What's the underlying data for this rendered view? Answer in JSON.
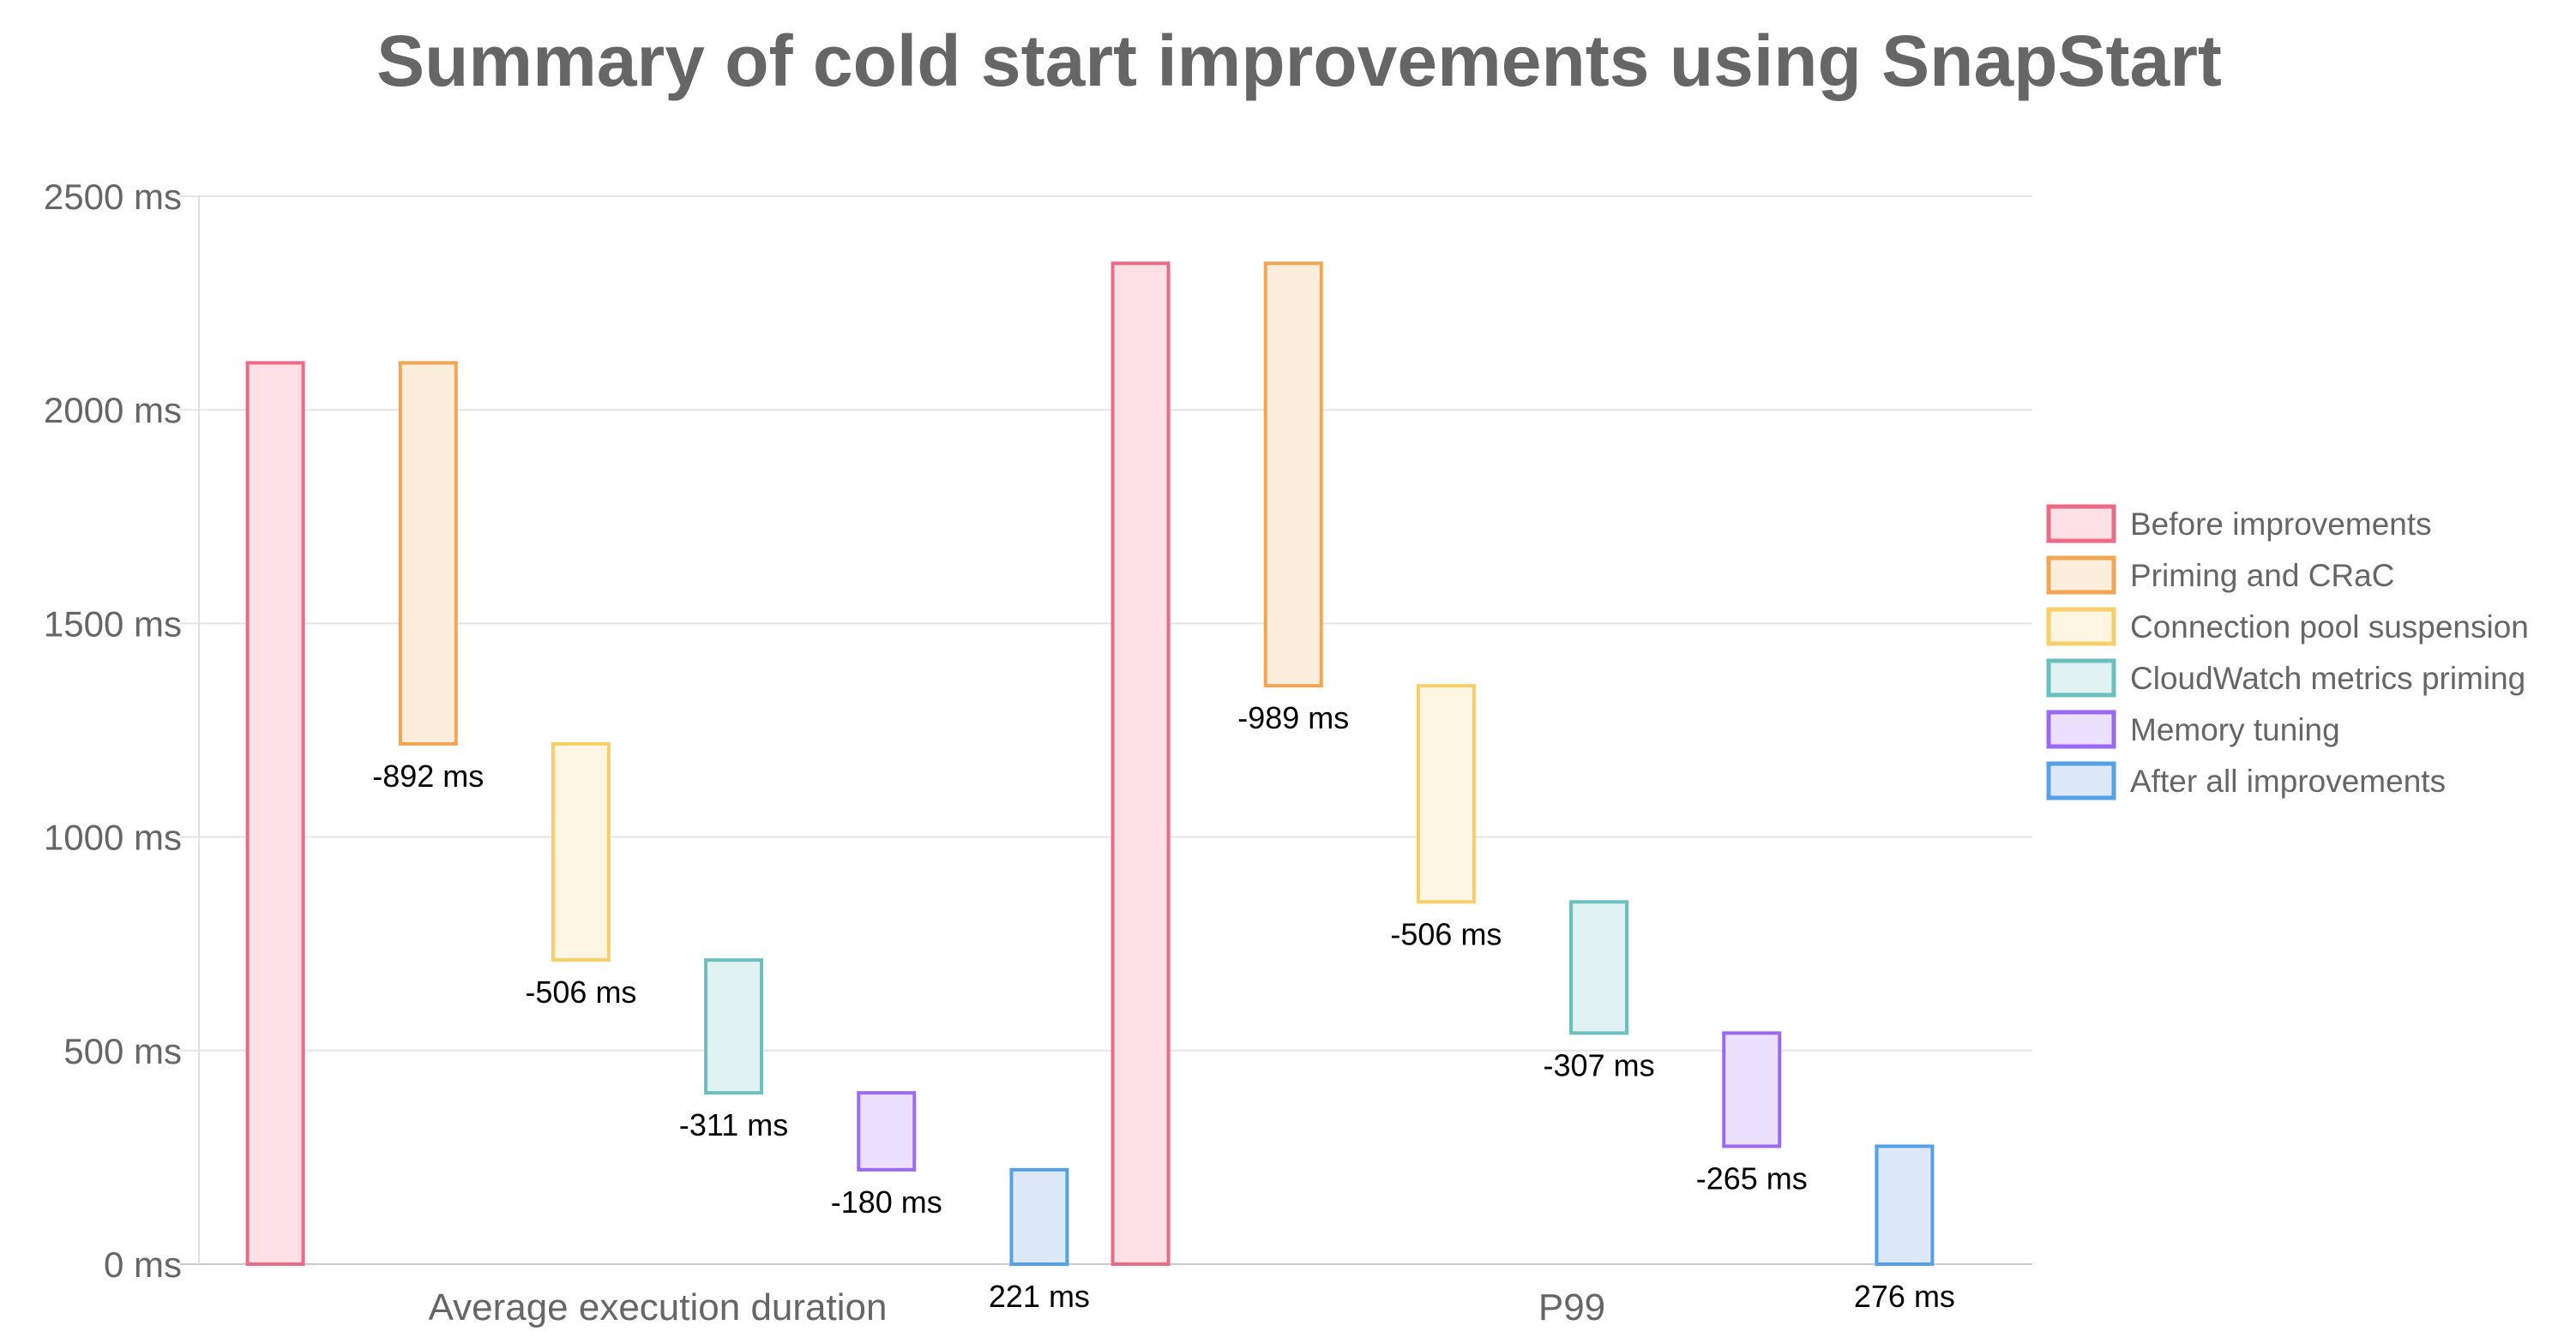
{
  "chart_data": {
    "type": "bar",
    "subtype": "waterfall",
    "title": "Summary of cold start improvements using SnapStart",
    "categories": [
      "Average execution duration",
      "P99"
    ],
    "ylim": [
      0,
      2500
    ],
    "yticks": [
      0,
      500,
      1000,
      1500,
      2000,
      2500
    ],
    "ytick_labels": [
      "0 ms",
      "500 ms",
      "1000 ms",
      "1500 ms",
      "2000 ms",
      "2500 ms"
    ],
    "grid": true,
    "legend_position": "right",
    "series": [
      {
        "name": "Before improvements",
        "color": "#ec6b84",
        "fill": "#fde1e6",
        "ranges": [
          [
            0,
            2110
          ],
          [
            0,
            2343
          ]
        ],
        "labels": [
          "",
          ""
        ]
      },
      {
        "name": "Priming and CRaC",
        "color": "#f2a553",
        "fill": "#fdeddd",
        "ranges": [
          [
            1218,
            2110
          ],
          [
            1354,
            2343
          ]
        ],
        "labels": [
          "-892 ms",
          "-989 ms"
        ]
      },
      {
        "name": "Connection pool suspension",
        "color": "#f7cf68",
        "fill": "#fef6e2",
        "ranges": [
          [
            712,
            1218
          ],
          [
            848,
            1354
          ]
        ],
        "labels": [
          "-506 ms",
          "-506 ms"
        ]
      },
      {
        "name": "CloudWatch metrics priming",
        "color": "#6cbfbf",
        "fill": "#e1f2f2",
        "ranges": [
          [
            401,
            712
          ],
          [
            541,
            848
          ]
        ],
        "labels": [
          "-311 ms",
          "-307 ms"
        ]
      },
      {
        "name": "Memory tuning",
        "color": "#9a6af5",
        "fill": "#ebe0fd",
        "ranges": [
          [
            221,
            401
          ],
          [
            276,
            541
          ]
        ],
        "labels": [
          "-180 ms",
          "-265 ms"
        ]
      },
      {
        "name": "After all improvements",
        "color": "#55a0e6",
        "fill": "#dde9f8",
        "ranges": [
          [
            0,
            221
          ],
          [
            0,
            276
          ]
        ],
        "labels": [
          "221 ms",
          "276 ms"
        ]
      }
    ]
  }
}
